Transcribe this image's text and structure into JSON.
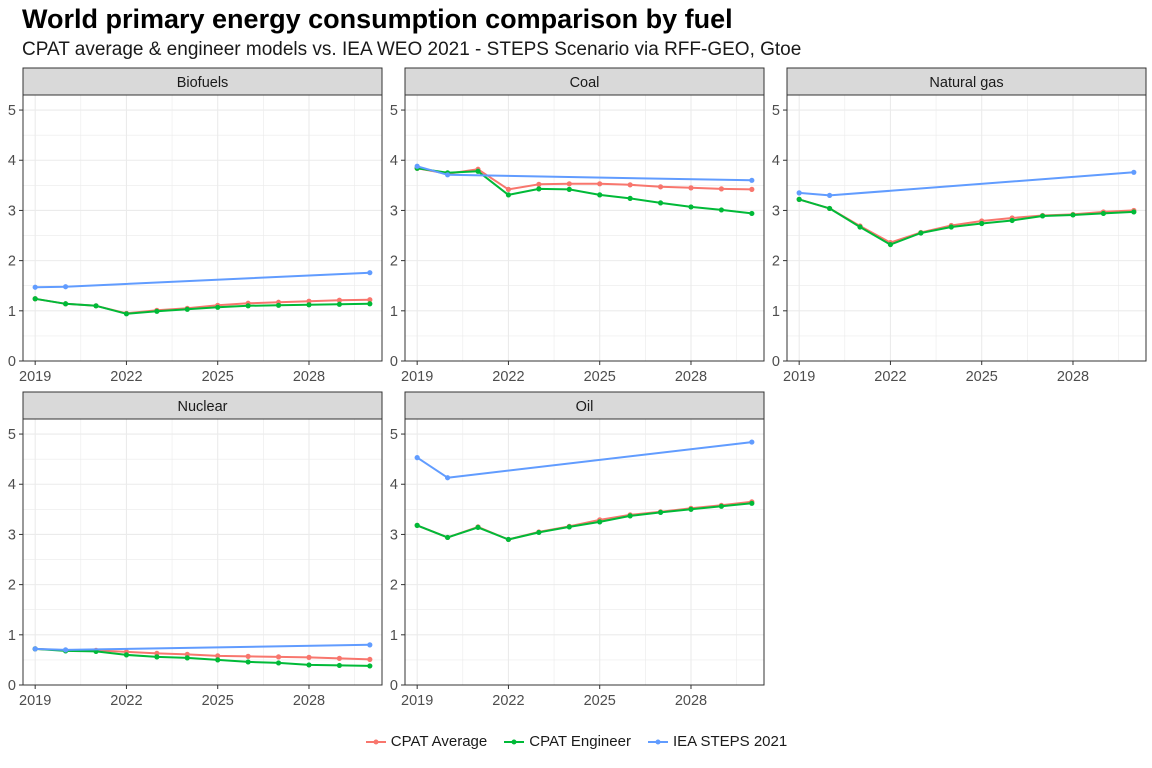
{
  "header": {
    "title": "World primary energy consumption comparison by fuel",
    "subtitle": "CPAT average & engineer models vs. IEA WEO 2021 - STEPS Scenario via RFF-GEO, Gtoe"
  },
  "colors": {
    "cpat_average": "#F8766D",
    "cpat_engineer": "#00BA38",
    "iea_steps": "#619CFF",
    "strip_bg": "#D9D9D9",
    "grid": "#EBEBEB"
  },
  "chart_data": {
    "type": "line",
    "facet_layout": "wrap 3 columns",
    "ylim": [
      0,
      5.3
    ],
    "xlim": [
      2018.6,
      2030.4
    ],
    "y_ticks": [
      0,
      1,
      2,
      3,
      4,
      5
    ],
    "x_ticks": [
      2019,
      2022,
      2025,
      2028
    ],
    "legend_position": "bottom",
    "grid": true,
    "legend": [
      {
        "key": "cpat_average",
        "label": "CPAT Average"
      },
      {
        "key": "cpat_engineer",
        "label": "CPAT Engineer"
      },
      {
        "key": "iea_steps",
        "label": "IEA STEPS 2021"
      }
    ],
    "facets": [
      {
        "name": "Biofuels",
        "series": [
          {
            "key": "cpat_average",
            "x": [
              2019,
              2020,
              2021,
              2022,
              2023,
              2024,
              2025,
              2026,
              2027,
              2028,
              2029,
              2030
            ],
            "y": [
              1.24,
              1.14,
              1.1,
              0.95,
              1.01,
              1.05,
              1.11,
              1.15,
              1.17,
              1.19,
              1.21,
              1.22
            ]
          },
          {
            "key": "cpat_engineer",
            "x": [
              2019,
              2020,
              2021,
              2022,
              2023,
              2024,
              2025,
              2026,
              2027,
              2028,
              2029,
              2030
            ],
            "y": [
              1.24,
              1.14,
              1.1,
              0.94,
              0.99,
              1.03,
              1.07,
              1.1,
              1.11,
              1.12,
              1.13,
              1.14
            ]
          },
          {
            "key": "iea_steps",
            "x": [
              2019,
              2020,
              2030
            ],
            "y": [
              1.47,
              1.48,
              1.76
            ]
          }
        ]
      },
      {
        "name": "Coal",
        "series": [
          {
            "key": "cpat_average",
            "x": [
              2019,
              2020,
              2021,
              2022,
              2023,
              2024,
              2025,
              2026,
              2027,
              2028,
              2029,
              2030
            ],
            "y": [
              3.84,
              3.73,
              3.82,
              3.42,
              3.52,
              3.53,
              3.53,
              3.51,
              3.47,
              3.45,
              3.43,
              3.42
            ]
          },
          {
            "key": "cpat_engineer",
            "x": [
              2019,
              2020,
              2021,
              2022,
              2023,
              2024,
              2025,
              2026,
              2027,
              2028,
              2029,
              2030
            ],
            "y": [
              3.84,
              3.75,
              3.78,
              3.31,
              3.43,
              3.42,
              3.31,
              3.24,
              3.15,
              3.07,
              3.01,
              2.94
            ]
          },
          {
            "key": "iea_steps",
            "x": [
              2019,
              2020,
              2030
            ],
            "y": [
              3.88,
              3.71,
              3.6
            ]
          }
        ]
      },
      {
        "name": "Natural gas",
        "series": [
          {
            "key": "cpat_average",
            "x": [
              2019,
              2020,
              2021,
              2022,
              2023,
              2024,
              2025,
              2026,
              2027,
              2028,
              2029,
              2030
            ],
            "y": [
              3.22,
              3.04,
              2.69,
              2.36,
              2.56,
              2.7,
              2.79,
              2.85,
              2.9,
              2.92,
              2.97,
              3.0
            ]
          },
          {
            "key": "cpat_engineer",
            "x": [
              2019,
              2020,
              2021,
              2022,
              2023,
              2024,
              2025,
              2026,
              2027,
              2028,
              2029,
              2030
            ],
            "y": [
              3.22,
              3.04,
              2.67,
              2.32,
              2.55,
              2.67,
              2.74,
              2.8,
              2.89,
              2.91,
              2.94,
              2.97
            ]
          },
          {
            "key": "iea_steps",
            "x": [
              2019,
              2020,
              2030
            ],
            "y": [
              3.35,
              3.3,
              3.76
            ]
          }
        ]
      },
      {
        "name": "Nuclear",
        "series": [
          {
            "key": "cpat_average",
            "x": [
              2019,
              2020,
              2021,
              2022,
              2023,
              2024,
              2025,
              2026,
              2027,
              2028,
              2029,
              2030
            ],
            "y": [
              0.72,
              0.69,
              0.69,
              0.66,
              0.63,
              0.61,
              0.58,
              0.57,
              0.56,
              0.55,
              0.53,
              0.51
            ]
          },
          {
            "key": "cpat_engineer",
            "x": [
              2019,
              2020,
              2021,
              2022,
              2023,
              2024,
              2025,
              2026,
              2027,
              2028,
              2029,
              2030
            ],
            "y": [
              0.72,
              0.68,
              0.67,
              0.6,
              0.56,
              0.54,
              0.5,
              0.46,
              0.44,
              0.4,
              0.39,
              0.38
            ]
          },
          {
            "key": "iea_steps",
            "x": [
              2019,
              2020,
              2030
            ],
            "y": [
              0.72,
              0.7,
              0.8
            ]
          }
        ]
      },
      {
        "name": "Oil",
        "series": [
          {
            "key": "cpat_average",
            "x": [
              2019,
              2020,
              2021,
              2022,
              2023,
              2024,
              2025,
              2026,
              2027,
              2028,
              2029,
              2030
            ],
            "y": [
              3.18,
              2.94,
              3.15,
              2.9,
              3.05,
              3.16,
              3.29,
              3.39,
              3.45,
              3.52,
              3.58,
              3.65
            ]
          },
          {
            "key": "cpat_engineer",
            "x": [
              2019,
              2020,
              2021,
              2022,
              2023,
              2024,
              2025,
              2026,
              2027,
              2028,
              2029,
              2030
            ],
            "y": [
              3.18,
              2.94,
              3.14,
              2.9,
              3.04,
              3.15,
              3.25,
              3.37,
              3.44,
              3.5,
              3.56,
              3.62
            ]
          },
          {
            "key": "iea_steps",
            "x": [
              2019,
              2020,
              2030
            ],
            "y": [
              4.53,
              4.13,
              4.84
            ]
          }
        ]
      }
    ]
  }
}
